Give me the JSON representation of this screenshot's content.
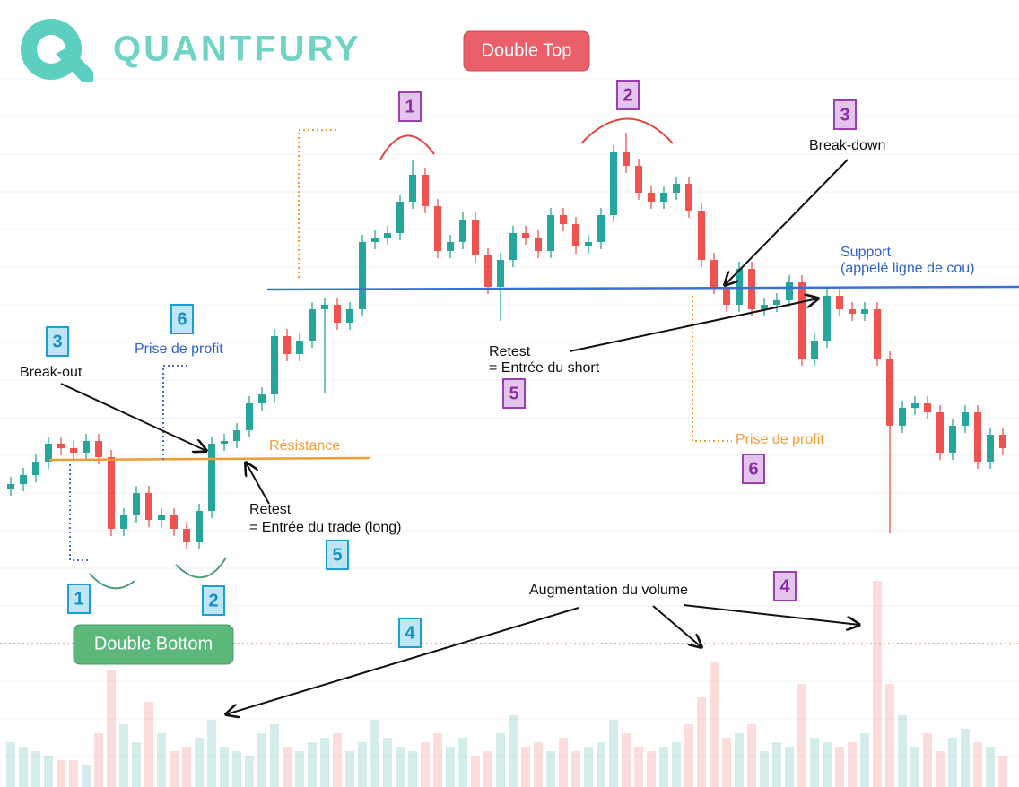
{
  "brand": "QUANTFURY",
  "chart_data": {
    "type": "candlestick",
    "open": [
      333,
      338,
      348,
      363,
      383,
      378,
      373,
      386,
      368,
      288,
      303,
      328,
      298,
      303,
      288,
      273,
      308,
      383,
      386,
      398,
      428,
      438,
      503,
      483,
      498,
      533,
      538,
      518,
      533,
      608,
      613,
      618,
      653,
      683,
      648,
      598,
      608,
      633,
      593,
      558,
      588,
      618,
      613,
      598,
      638,
      628,
      603,
      608,
      638,
      708,
      693,
      663,
      653,
      663,
      673,
      643,
      588,
      558,
      538,
      578,
      533,
      538,
      543,
      563,
      478,
      498,
      548,
      533,
      528,
      533,
      478,
      403,
      423,
      428,
      418,
      373,
      403,
      418,
      363,
      393
    ],
    "high": [
      346,
      356,
      371,
      391,
      391,
      386,
      394,
      394,
      376,
      311,
      336,
      336,
      311,
      311,
      296,
      316,
      391,
      394,
      406,
      436,
      446,
      511,
      511,
      506,
      541,
      546,
      546,
      541,
      616,
      621,
      626,
      661,
      700,
      691,
      656,
      616,
      641,
      641,
      601,
      596,
      626,
      626,
      621,
      646,
      646,
      636,
      616,
      646,
      716,
      730,
      701,
      671,
      671,
      681,
      681,
      651,
      596,
      566,
      586,
      586,
      546,
      551,
      571,
      571,
      506,
      556,
      556,
      541,
      541,
      541,
      486,
      431,
      436,
      436,
      426,
      411,
      426,
      426,
      401,
      401
    ],
    "low": [
      325,
      330,
      340,
      355,
      370,
      365,
      365,
      360,
      280,
      280,
      295,
      290,
      290,
      280,
      265,
      265,
      300,
      375,
      378,
      390,
      420,
      430,
      475,
      475,
      490,
      440,
      510,
      510,
      525,
      600,
      605,
      610,
      645,
      640,
      590,
      590,
      600,
      585,
      550,
      520,
      580,
      605,
      590,
      590,
      620,
      595,
      595,
      600,
      630,
      685,
      655,
      645,
      645,
      655,
      635,
      580,
      550,
      530,
      530,
      525,
      525,
      530,
      535,
      470,
      470,
      490,
      525,
      520,
      520,
      470,
      283,
      395,
      415,
      410,
      365,
      365,
      395,
      355,
      355,
      370
    ],
    "close": [
      338,
      348,
      363,
      383,
      378,
      373,
      386,
      368,
      288,
      303,
      328,
      298,
      303,
      288,
      273,
      308,
      383,
      386,
      398,
      428,
      438,
      503,
      483,
      498,
      533,
      538,
      518,
      533,
      608,
      613,
      618,
      653,
      683,
      648,
      598,
      608,
      633,
      593,
      558,
      588,
      618,
      613,
      598,
      638,
      628,
      603,
      608,
      638,
      708,
      693,
      663,
      653,
      663,
      673,
      643,
      588,
      558,
      538,
      578,
      533,
      538,
      543,
      563,
      478,
      498,
      548,
      533,
      528,
      533,
      478,
      403,
      423,
      428,
      418,
      373,
      403,
      418,
      363,
      393,
      378
    ],
    "volume": [
      50,
      45,
      40,
      35,
      30,
      30,
      25,
      60,
      130,
      70,
      50,
      95,
      60,
      40,
      45,
      55,
      75,
      45,
      40,
      35,
      60,
      70,
      45,
      40,
      50,
      55,
      60,
      40,
      50,
      75,
      55,
      45,
      40,
      50,
      60,
      45,
      55,
      35,
      40,
      60,
      80,
      45,
      50,
      40,
      55,
      40,
      45,
      50,
      75,
      60,
      45,
      40,
      45,
      50,
      70,
      100,
      140,
      55,
      60,
      70,
      40,
      50,
      45,
      115,
      55,
      50,
      45,
      50,
      60,
      230,
      115,
      80,
      45,
      60,
      40,
      55,
      65,
      50,
      45,
      35
    ],
    "ylim": [
      0,
      878
    ],
    "vlim": [
      0,
      230
    ],
    "up_color": "#26a69a",
    "down_color": "#ef5350",
    "annotations": [
      "Double Top",
      "Double Bottom",
      "Break-out",
      "Prise de profit",
      "Résistance",
      "Retest",
      "= Entrée du trade (long)",
      "Retest",
      "= Entrée du short",
      "Break-down",
      "Support",
      "(appelé ligne de cou)",
      "Prise de profit",
      "Augmentation du volume"
    ],
    "markers": [
      "3",
      "6",
      "1",
      "2",
      "5",
      "4",
      "1",
      "2",
      "3",
      "5",
      "6",
      "4"
    ]
  }
}
